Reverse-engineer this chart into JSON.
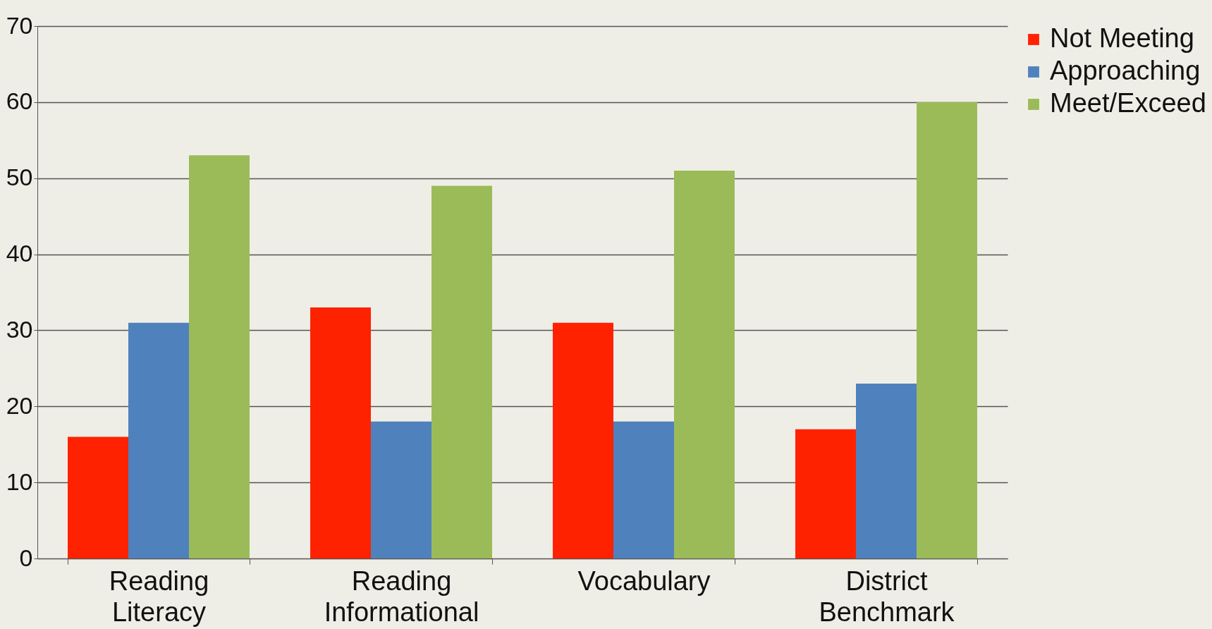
{
  "chart_data": {
    "type": "bar",
    "categories": [
      "Reading Literacy",
      "Reading Informational",
      "Vocabulary",
      "District Benchmark"
    ],
    "series": [
      {
        "name": "Not Meeting",
        "color": "#ff2200",
        "values": [
          16,
          33,
          31,
          17
        ]
      },
      {
        "name": "Approaching",
        "color": "#4f81bd",
        "values": [
          31,
          18,
          18,
          23
        ]
      },
      {
        "name": "Meet/Exceed",
        "color": "#9bbb59",
        "values": [
          53,
          49,
          51,
          60
        ]
      }
    ],
    "ylim": [
      0,
      70
    ],
    "yticks": [
      0,
      10,
      20,
      30,
      40,
      50,
      60,
      70
    ],
    "grid": "y",
    "legend": "right"
  }
}
